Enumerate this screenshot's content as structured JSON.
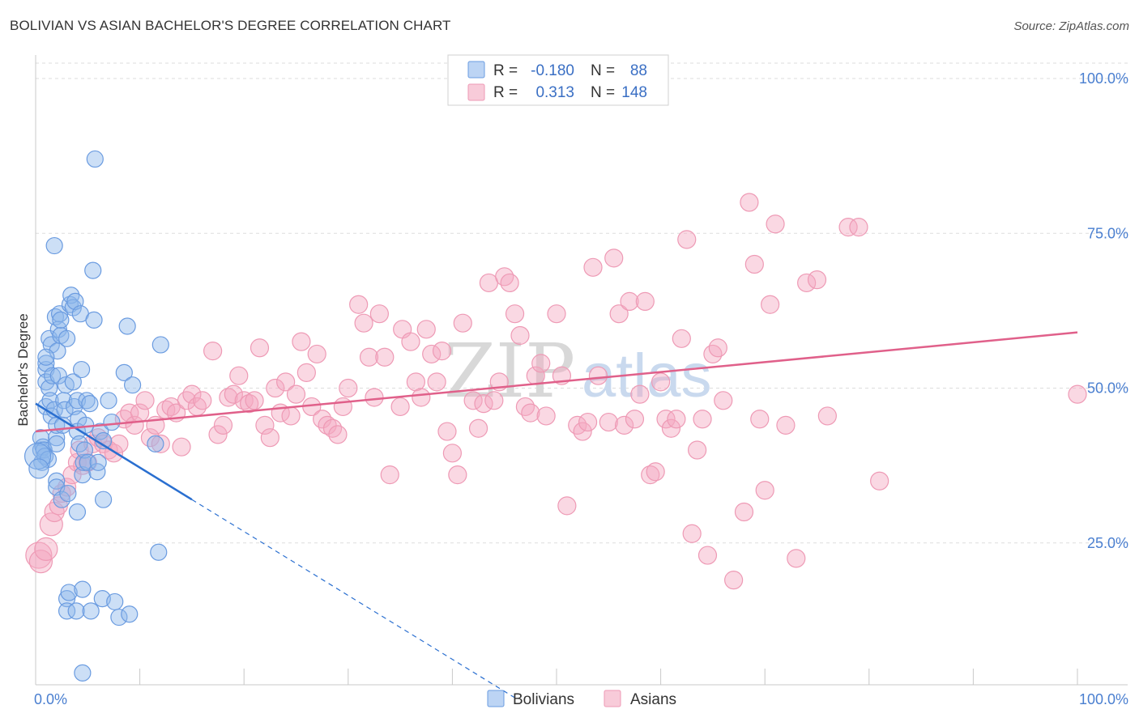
{
  "title": "BOLIVIAN VS ASIAN BACHELOR'S DEGREE CORRELATION CHART",
  "source": "Source: ZipAtlas.com",
  "chart_data": {
    "type": "scatter",
    "xlabel": "",
    "ylabel": "Bachelor's Degree",
    "xlim": [
      0,
      100
    ],
    "ylim": [
      0,
      100
    ],
    "x_tick_labels": [
      "0.0%",
      "100.0%"
    ],
    "y_ticks": [
      25,
      50,
      75,
      100
    ],
    "y_tick_labels": [
      "25.0%",
      "50.0%",
      "75.0%",
      "100.0%"
    ],
    "grid": true,
    "watermark": {
      "zip": "ZIP",
      "atlas": "atlas"
    },
    "legend": {
      "r_label": "R =",
      "n_label": "N =",
      "entries": [
        {
          "name": "Bolivians",
          "r": "-0.180",
          "n": "88",
          "color": "#8fb8ec",
          "line_color": "#2a6fd0"
        },
        {
          "name": "Asians",
          "r": "0.313",
          "n": "148",
          "color": "#f4a9c0",
          "line_color": "#e0608a"
        }
      ]
    },
    "series": [
      {
        "name": "Bolivians",
        "trend": {
          "x0": 0,
          "y0": 47.5,
          "x1": 15,
          "y1": 32,
          "dash_x_end": 46,
          "dash_y_end": 0
        },
        "points": [
          [
            0.5,
            40
          ],
          [
            0.5,
            42
          ],
          [
            0.6,
            38
          ],
          [
            0.7,
            40.5
          ],
          [
            0.8,
            40
          ],
          [
            0.9,
            39
          ],
          [
            1,
            47
          ],
          [
            1,
            53
          ],
          [
            1,
            51
          ],
          [
            1,
            54
          ],
          [
            1.2,
            38.5
          ],
          [
            1.3,
            50
          ],
          [
            1.3,
            58
          ],
          [
            1.4,
            48
          ],
          [
            1.5,
            45.5
          ],
          [
            1.5,
            57
          ],
          [
            1.6,
            52
          ],
          [
            1.8,
            46.5
          ],
          [
            1.8,
            73
          ],
          [
            1.9,
            61.5
          ],
          [
            2,
            42
          ],
          [
            2,
            41
          ],
          [
            2,
            35
          ],
          [
            2,
            34
          ],
          [
            2,
            44
          ],
          [
            2.1,
            56
          ],
          [
            2.2,
            52
          ],
          [
            2.2,
            59.5
          ],
          [
            2.3,
            62
          ],
          [
            2.4,
            58.5
          ],
          [
            2.4,
            61
          ],
          [
            2.5,
            32
          ],
          [
            2.6,
            44
          ],
          [
            2.7,
            48
          ],
          [
            2.8,
            46.5
          ],
          [
            2.9,
            50.5
          ],
          [
            3,
            58
          ],
          [
            3,
            16
          ],
          [
            3,
            14
          ],
          [
            3.1,
            33
          ],
          [
            3.2,
            17
          ],
          [
            3.3,
            63.5
          ],
          [
            3.4,
            65
          ],
          [
            3.6,
            51
          ],
          [
            3.6,
            63
          ],
          [
            3.7,
            47
          ],
          [
            3.8,
            64
          ],
          [
            3.9,
            14
          ],
          [
            4,
            48
          ],
          [
            4,
            30
          ],
          [
            4.1,
            45
          ],
          [
            4,
            43
          ],
          [
            4.2,
            41
          ],
          [
            4.3,
            62
          ],
          [
            4.4,
            53
          ],
          [
            4.5,
            36
          ],
          [
            4.5,
            17.5
          ],
          [
            4.5,
            4
          ],
          [
            4.6,
            38
          ],
          [
            4.7,
            40
          ],
          [
            4.8,
            44
          ],
          [
            4.9,
            48
          ],
          [
            5,
            38
          ],
          [
            5.2,
            47.5
          ],
          [
            5.3,
            14
          ],
          [
            5.5,
            69
          ],
          [
            5.6,
            61
          ],
          [
            5.7,
            87
          ],
          [
            5.9,
            36.5
          ],
          [
            6,
            38
          ],
          [
            6.2,
            43
          ],
          [
            6.4,
            16
          ],
          [
            6.5,
            32
          ],
          [
            6.5,
            41.5
          ],
          [
            7,
            48
          ],
          [
            7.3,
            44.5
          ],
          [
            7.6,
            15.5
          ],
          [
            8,
            13
          ],
          [
            8.5,
            52.5
          ],
          [
            8.8,
            60
          ],
          [
            9,
            13.5
          ],
          [
            9.3,
            50.5
          ],
          [
            11.5,
            41
          ],
          [
            11.8,
            23.5
          ],
          [
            12,
            57
          ],
          [
            0.2,
            39
          ],
          [
            0.3,
            37
          ],
          [
            1,
            55
          ]
        ],
        "sizes": [
          10,
          10,
          10,
          10,
          10,
          10,
          10,
          10,
          10,
          10,
          10,
          10,
          10,
          10,
          10,
          10,
          10,
          10,
          10,
          10,
          10,
          10,
          10,
          10,
          10,
          10,
          10,
          10,
          10,
          10,
          10,
          10,
          10,
          10,
          10,
          10,
          10,
          10,
          10,
          10,
          10,
          10,
          10,
          10,
          10,
          10,
          10,
          10,
          10,
          10,
          10,
          10,
          10,
          10,
          10,
          10,
          10,
          10,
          10,
          10,
          10,
          10,
          10,
          10,
          10,
          10,
          10,
          10,
          10,
          10,
          10,
          10,
          10,
          10,
          10,
          10,
          10,
          10,
          10,
          10,
          10,
          10,
          10,
          10,
          10,
          16,
          12,
          10
        ]
      },
      {
        "name": "Asians",
        "trend": {
          "x0": 0,
          "y0": 43,
          "x1": 100,
          "y1": 59
        },
        "points": [
          [
            0.3,
            23
          ],
          [
            0.5,
            22
          ],
          [
            1,
            24
          ],
          [
            1.5,
            28
          ],
          [
            1.8,
            30
          ],
          [
            2.2,
            31
          ],
          [
            2.5,
            33
          ],
          [
            3,
            34
          ],
          [
            3.5,
            36
          ],
          [
            4,
            38
          ],
          [
            4.2,
            40
          ],
          [
            4.5,
            37.5
          ],
          [
            5,
            38
          ],
          [
            5.5,
            41
          ],
          [
            6,
            42
          ],
          [
            6.5,
            41
          ],
          [
            7,
            40
          ],
          [
            7.5,
            39.5
          ],
          [
            8,
            41
          ],
          [
            8.5,
            45
          ],
          [
            9,
            46
          ],
          [
            9.5,
            44
          ],
          [
            10,
            46
          ],
          [
            10.5,
            48
          ],
          [
            11,
            42
          ],
          [
            11.5,
            44
          ],
          [
            12,
            41
          ],
          [
            12.5,
            46.5
          ],
          [
            13,
            47
          ],
          [
            13.5,
            46
          ],
          [
            14,
            40.5
          ],
          [
            14.5,
            48
          ],
          [
            15,
            49
          ],
          [
            15.5,
            47
          ],
          [
            16,
            48
          ],
          [
            17,
            56
          ],
          [
            17.5,
            42.5
          ],
          [
            18,
            44
          ],
          [
            18.5,
            48.5
          ],
          [
            19,
            49
          ],
          [
            19.5,
            52
          ],
          [
            20,
            48
          ],
          [
            20.5,
            47.5
          ],
          [
            21,
            48
          ],
          [
            21.5,
            56.5
          ],
          [
            22,
            44
          ],
          [
            22.5,
            42
          ],
          [
            23,
            50
          ],
          [
            23.5,
            46
          ],
          [
            24,
            51
          ],
          [
            24.5,
            45.5
          ],
          [
            25,
            49
          ],
          [
            25.5,
            57.5
          ],
          [
            26,
            52.5
          ],
          [
            26.5,
            47
          ],
          [
            27,
            55.5
          ],
          [
            27.5,
            45
          ],
          [
            28,
            44
          ],
          [
            28.5,
            43.5
          ],
          [
            29,
            42.5
          ],
          [
            29.5,
            47
          ],
          [
            30,
            50
          ],
          [
            31,
            63.5
          ],
          [
            31.5,
            60.5
          ],
          [
            32,
            55
          ],
          [
            32.5,
            48.5
          ],
          [
            33,
            62
          ],
          [
            33.5,
            55
          ],
          [
            34,
            36
          ],
          [
            35,
            47
          ],
          [
            35.2,
            59.5
          ],
          [
            36,
            57.5
          ],
          [
            36.5,
            51
          ],
          [
            37,
            48.5
          ],
          [
            37.5,
            59.5
          ],
          [
            38,
            55.5
          ],
          [
            38.5,
            51
          ],
          [
            39,
            56
          ],
          [
            39.5,
            43
          ],
          [
            40,
            39.5
          ],
          [
            40.5,
            36
          ],
          [
            41,
            60.5
          ],
          [
            42,
            48
          ],
          [
            42.5,
            43.5
          ],
          [
            43,
            47.5
          ],
          [
            43.5,
            67
          ],
          [
            44,
            48
          ],
          [
            44.5,
            51
          ],
          [
            45,
            68
          ],
          [
            45.5,
            67
          ],
          [
            46,
            62
          ],
          [
            46.5,
            58.5
          ],
          [
            47,
            47
          ],
          [
            47.5,
            46
          ],
          [
            48,
            52
          ],
          [
            48.5,
            54
          ],
          [
            49,
            45.5
          ],
          [
            50,
            62
          ],
          [
            50.5,
            52
          ],
          [
            51,
            31
          ],
          [
            52,
            44
          ],
          [
            52.5,
            43
          ],
          [
            53,
            44.5
          ],
          [
            53.5,
            69.5
          ],
          [
            54,
            52
          ],
          [
            55,
            44.5
          ],
          [
            55.5,
            71
          ],
          [
            56,
            62
          ],
          [
            56.5,
            44
          ],
          [
            57,
            64
          ],
          [
            57.5,
            45
          ],
          [
            58,
            49
          ],
          [
            58.5,
            64
          ],
          [
            59,
            36
          ],
          [
            59.5,
            36.5
          ],
          [
            60,
            51
          ],
          [
            60.5,
            45
          ],
          [
            61,
            43.5
          ],
          [
            61.5,
            45
          ],
          [
            62,
            58
          ],
          [
            62.5,
            74
          ],
          [
            63,
            26.5
          ],
          [
            63.5,
            40
          ],
          [
            64,
            45
          ],
          [
            64.5,
            23
          ],
          [
            65,
            55.5
          ],
          [
            65.5,
            56.5
          ],
          [
            66,
            48
          ],
          [
            67,
            19
          ],
          [
            68,
            30
          ],
          [
            68.5,
            80
          ],
          [
            69,
            70
          ],
          [
            69.5,
            45
          ],
          [
            70,
            33.5
          ],
          [
            70.5,
            63.5
          ],
          [
            71,
            76.5
          ],
          [
            72,
            44
          ],
          [
            73,
            22.5
          ],
          [
            74,
            67
          ],
          [
            75,
            67.5
          ],
          [
            76,
            45.5
          ],
          [
            78,
            76
          ],
          [
            79,
            76
          ],
          [
            81,
            35
          ],
          [
            100,
            49
          ]
        ],
        "sizes": [
          16,
          14,
          14,
          14,
          12,
          11,
          11,
          11,
          11,
          11,
          11,
          11,
          11,
          11,
          11,
          11,
          11,
          11,
          11,
          11,
          11,
          11,
          11,
          11,
          11,
          11,
          11,
          11,
          11,
          11,
          11,
          11,
          11,
          11,
          11,
          11,
          11,
          11,
          11,
          11,
          11,
          11,
          11,
          11,
          11,
          11,
          11,
          11,
          11,
          11,
          11,
          11,
          11,
          11,
          11,
          11,
          11,
          11,
          11,
          11,
          11,
          11,
          11,
          11,
          11,
          11,
          11,
          11,
          11,
          11,
          11,
          11,
          11,
          11,
          11,
          11,
          11,
          11,
          11,
          11,
          11,
          11,
          11,
          11,
          11,
          11,
          11,
          11,
          11,
          11,
          11,
          11,
          11,
          11,
          11,
          11,
          11,
          11,
          11,
          11,
          11,
          11,
          11,
          11,
          11,
          11,
          11,
          11,
          11,
          11,
          11,
          11,
          11,
          11,
          11,
          11,
          11,
          11,
          11,
          11,
          11,
          11,
          11,
          11,
          11,
          11,
          11,
          11,
          11,
          11,
          11,
          11,
          11,
          11,
          11,
          11,
          11,
          11,
          11,
          11,
          11,
          11,
          11,
          11,
          11,
          11,
          11,
          11
        ]
      }
    ]
  }
}
